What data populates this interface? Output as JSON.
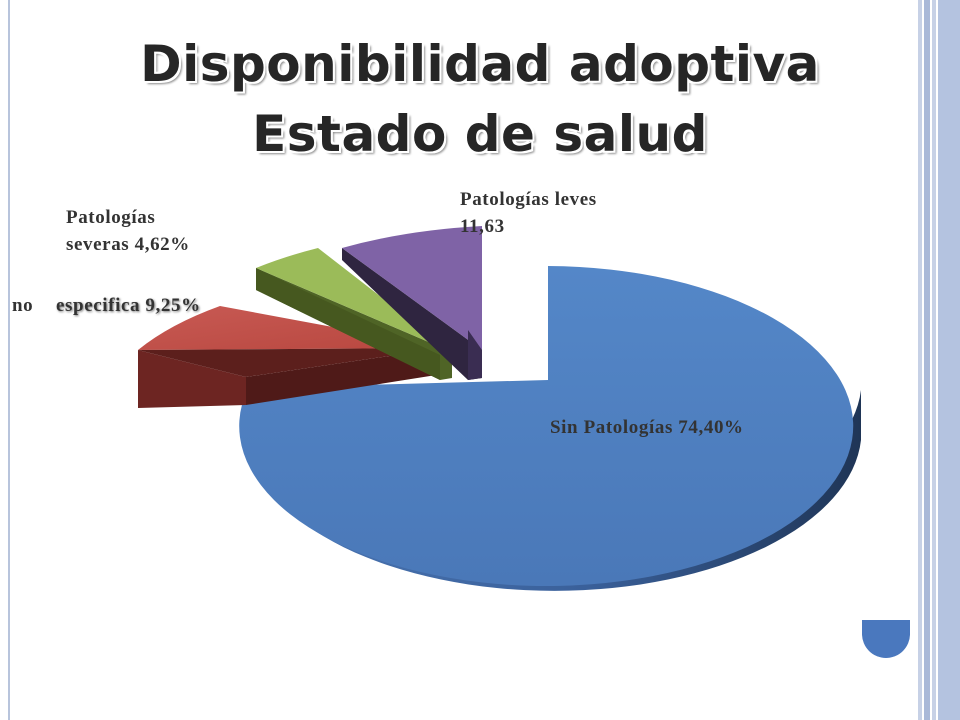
{
  "title_line1": "Disponibilidad adoptiva",
  "title_line2": "Estado de salud",
  "colors": {
    "blue": "#4f7fbf",
    "red": "#c0504d",
    "green": "#9bbb59",
    "purple": "#8064a2",
    "accent_tab": "#4a78be"
  },
  "chart_data": {
    "type": "pie",
    "style": "3d-exploded",
    "title": "Disponibilidad adoptiva Estado de salud",
    "slices": [
      {
        "label": "Sin Patologías 74,40%",
        "value": 74.4,
        "color": "#4f7fbf"
      },
      {
        "label": "no especifica 9,25%",
        "value": 9.25,
        "color": "#c0504d"
      },
      {
        "label": "Patologías severas 4,62%",
        "value": 4.62,
        "color": "#9bbb59"
      },
      {
        "label": "Patologías leves 11,63",
        "value": 11.63,
        "color": "#8064a2"
      }
    ],
    "labels": {
      "sin": "Sin Patologías 74,40%",
      "no_a": "no",
      "no_b": "especifica 9,25%",
      "sev_1": "Patologías",
      "sev_2": "severas 4,62%",
      "lev_1": "Patologías leves",
      "lev_2": "11,63"
    }
  }
}
